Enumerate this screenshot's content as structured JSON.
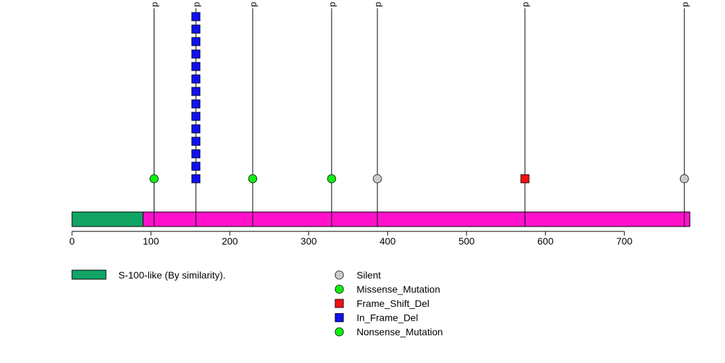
{
  "chart_data": {
    "type": "scatter",
    "protein_length": 783,
    "x_ticks": [
      0,
      100,
      200,
      300,
      400,
      500,
      600,
      700
    ],
    "xlim": [
      0,
      783
    ],
    "grid": false,
    "legend_placement": "bottom",
    "backbone_color": "#ff11cc",
    "domains": [
      {
        "name": "S-100-like (By similarity).",
        "start": 1,
        "end": 90,
        "color": "#11a565"
      }
    ],
    "lollipops": [
      {
        "position": 104,
        "label": "p",
        "marks": [
          {
            "type": "Missense_Mutation"
          }
        ]
      },
      {
        "position": 157,
        "label": "p",
        "marks": [
          {
            "type": "In_Frame_Del"
          },
          {
            "type": "In_Frame_Del"
          },
          {
            "type": "In_Frame_Del"
          },
          {
            "type": "In_Frame_Del"
          },
          {
            "type": "In_Frame_Del"
          },
          {
            "type": "In_Frame_Del"
          },
          {
            "type": "In_Frame_Del"
          },
          {
            "type": "In_Frame_Del"
          },
          {
            "type": "In_Frame_Del"
          },
          {
            "type": "In_Frame_Del"
          },
          {
            "type": "In_Frame_Del"
          },
          {
            "type": "In_Frame_Del"
          },
          {
            "type": "In_Frame_Del"
          },
          {
            "type": "In_Frame_Del"
          }
        ]
      },
      {
        "position": 229,
        "label": "p",
        "marks": [
          {
            "type": "Missense_Mutation"
          }
        ]
      },
      {
        "position": 329,
        "label": "p",
        "marks": [
          {
            "type": "Missense_Mutation"
          }
        ]
      },
      {
        "position": 387,
        "label": "p",
        "marks": [
          {
            "type": "Silent"
          }
        ]
      },
      {
        "position": 574,
        "label": "p",
        "marks": [
          {
            "type": "Frame_Shift_Del"
          }
        ]
      },
      {
        "position": 776,
        "label": "p",
        "marks": [
          {
            "type": "Silent"
          }
        ]
      }
    ],
    "mutation_types": [
      {
        "name": "Silent",
        "shape": "circle",
        "color": "#cccccc"
      },
      {
        "name": "Missense_Mutation",
        "shape": "circle",
        "color": "#11ee11"
      },
      {
        "name": "Frame_Shift_Del",
        "shape": "square",
        "color": "#ee1111"
      },
      {
        "name": "In_Frame_Del",
        "shape": "square",
        "color": "#1111ee"
      },
      {
        "name": "Nonsense_Mutation",
        "shape": "circle",
        "color": "#11ee11"
      }
    ]
  }
}
